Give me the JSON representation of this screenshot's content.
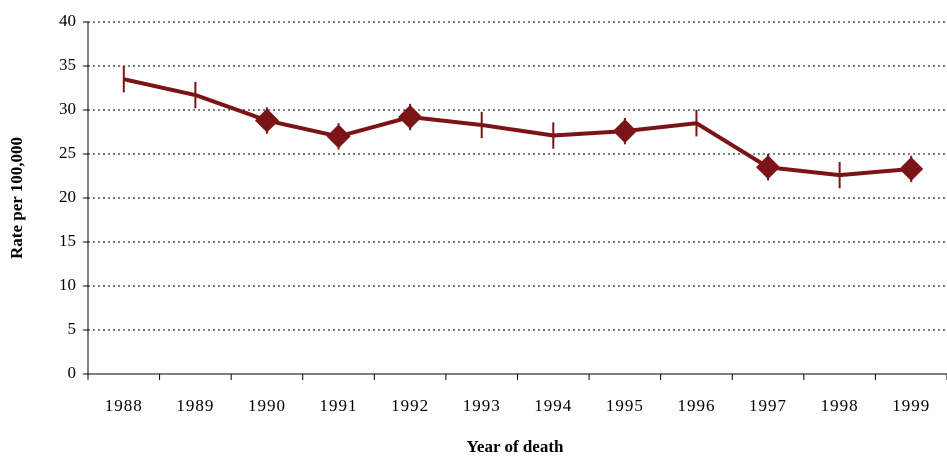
{
  "chart_data": {
    "type": "line",
    "x_label": "Year of death",
    "y_label": "Rate per 100,000",
    "categories": [
      "1988",
      "1989",
      "1990",
      "1991",
      "1992",
      "1993",
      "1994",
      "1995",
      "1996",
      "1997",
      "1998",
      "1999"
    ],
    "values": [
      33.5,
      31.7,
      28.8,
      27.0,
      29.2,
      28.3,
      27.1,
      27.6,
      28.5,
      23.5,
      22.6,
      23.3
    ],
    "errors": [
      1.5,
      1.5,
      1.5,
      1.5,
      1.5,
      1.5,
      1.5,
      1.5,
      1.5,
      1.5,
      1.5,
      1.5
    ],
    "markers": [
      false,
      false,
      true,
      true,
      true,
      false,
      false,
      true,
      false,
      true,
      false,
      true
    ],
    "color": "#7b1416",
    "ylim": [
      0,
      40
    ],
    "yticks": [
      0,
      5,
      10,
      15,
      20,
      25,
      30,
      35,
      40
    ],
    "grid": true
  }
}
